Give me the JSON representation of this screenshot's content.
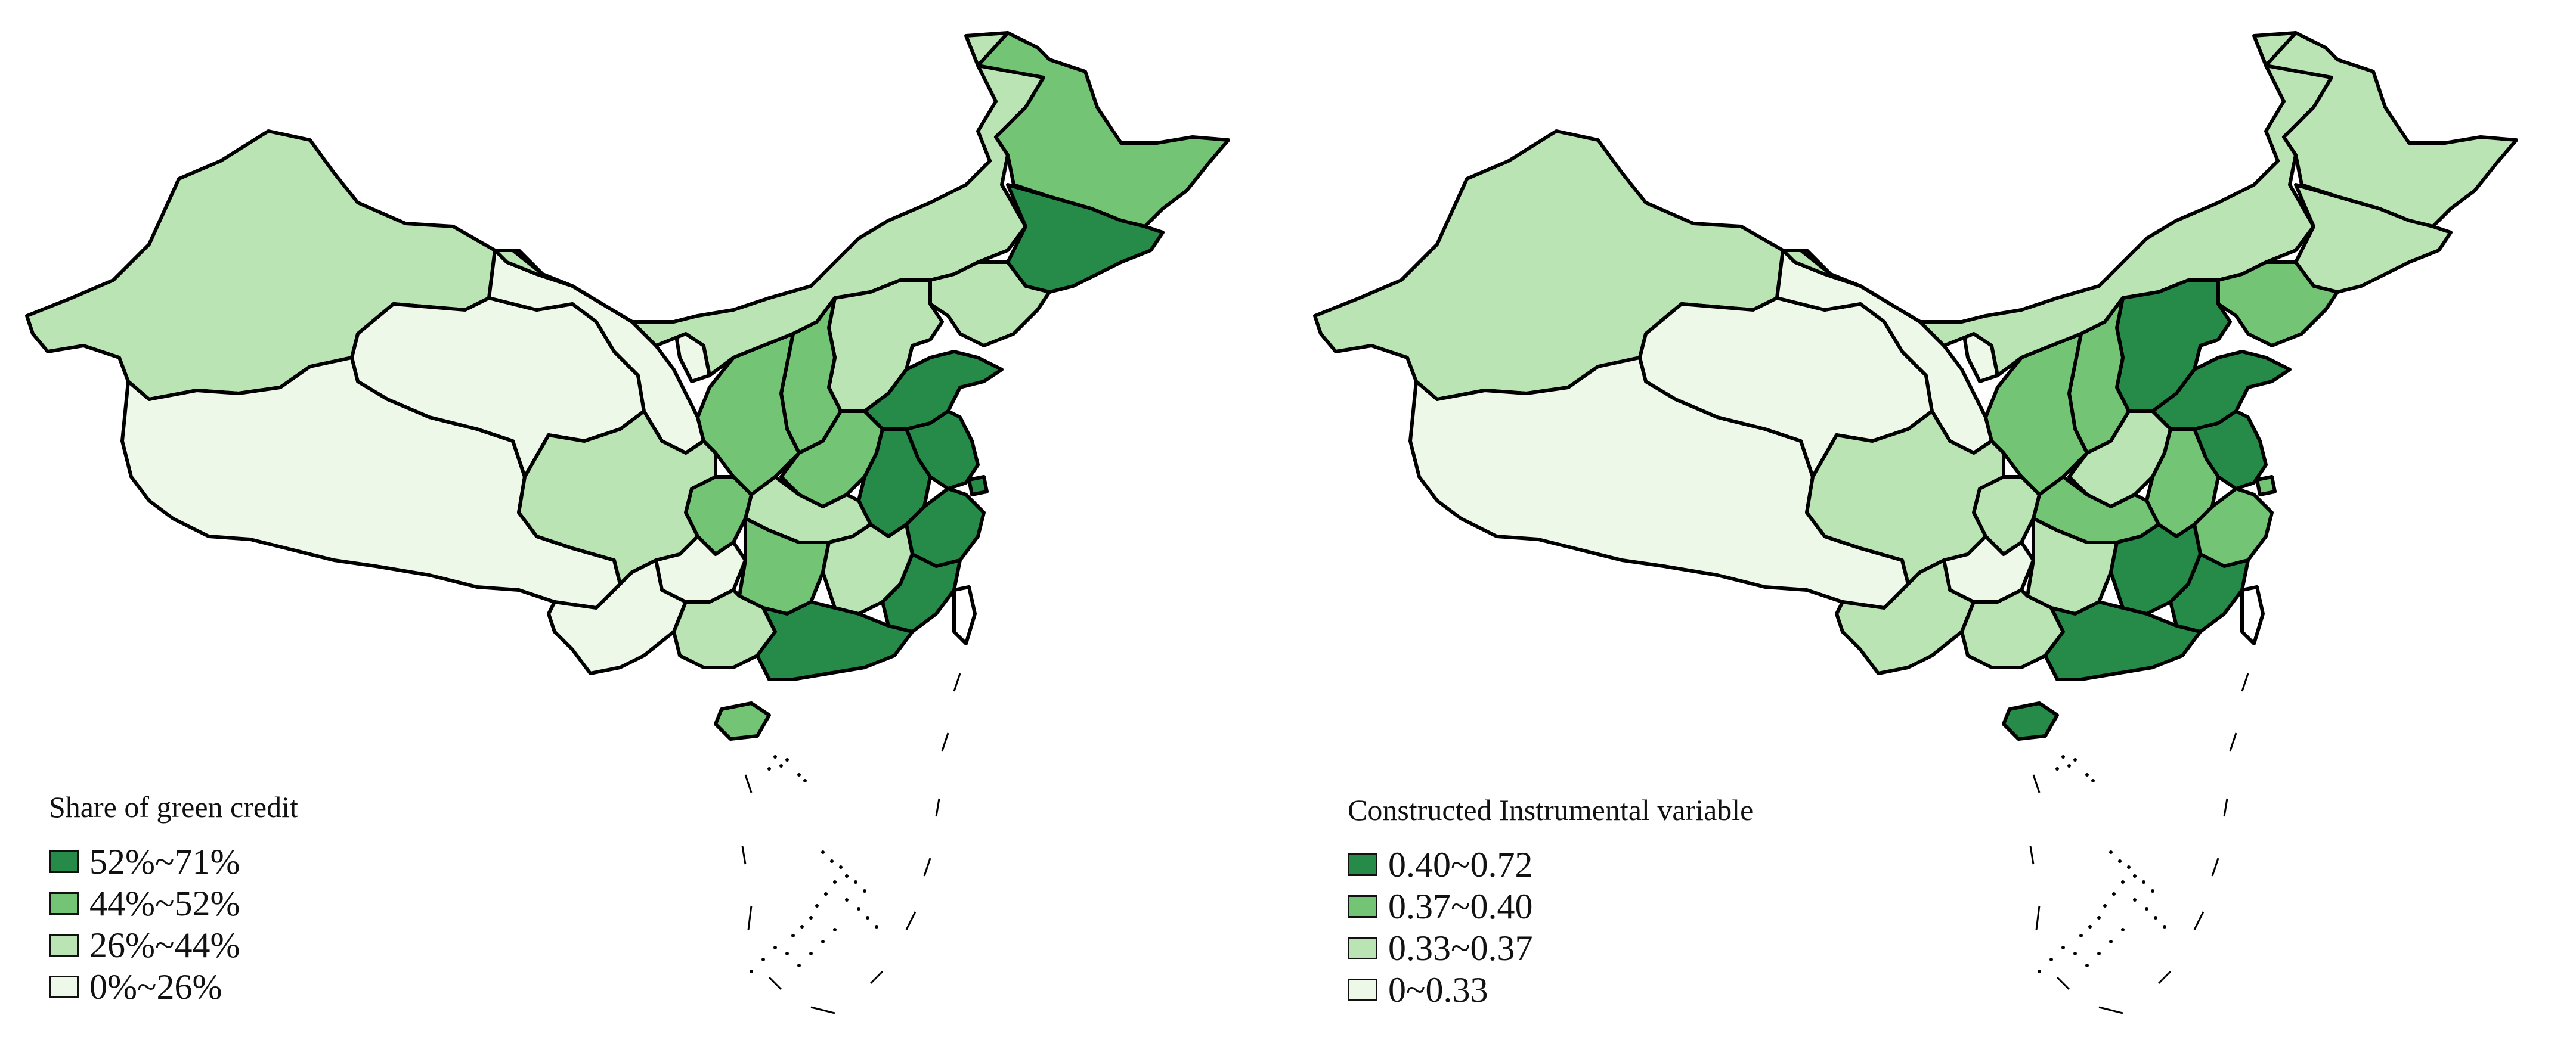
{
  "colors": {
    "c4": "#268a48",
    "c3": "#74c476",
    "c2": "#bae4b3",
    "c1": "#edf8e9",
    "border": "#000000"
  },
  "maps": [
    {
      "legend": {
        "title": "Share of green credit",
        "items": [
          {
            "label": "52%~71%",
            "class": 4
          },
          {
            "label": "44%~52%",
            "class": 3
          },
          {
            "label": "26%~44%",
            "class": 2
          },
          {
            "label": "0%~26%",
            "class": 1
          }
        ]
      },
      "regions": {
        "xinjiang": 2,
        "tibet": 1,
        "qinghai": 1,
        "gansu": 1,
        "inner_mongolia": 2,
        "heilongjiang": 3,
        "jilin": 4,
        "liaoning": 2,
        "beijing": 2,
        "tianjin": 2,
        "hebei": 2,
        "shanxi": 3,
        "shaanxi": 3,
        "ningxia": 1,
        "henan": 3,
        "shandong": 4,
        "jiangsu": 4,
        "shanghai": 4,
        "anhui": 4,
        "zhejiang": 4,
        "hubei": 2,
        "sichuan": 2,
        "chongqing": 3,
        "yunnan": 1,
        "guizhou": 1,
        "hunan": 3,
        "jiangxi": 2,
        "fujian": 4,
        "guangxi": 2,
        "guangdong": 4,
        "hainan": 3,
        "taiwan": 0
      }
    },
    {
      "legend": {
        "title": "Constructed Instrumental variable",
        "items": [
          {
            "label": "0.40~0.72",
            "class": 4
          },
          {
            "label": "0.37~0.40",
            "class": 3
          },
          {
            "label": "0.33~0.37",
            "class": 2
          },
          {
            "label": "0~0.33",
            "class": 1
          }
        ]
      },
      "regions": {
        "xinjiang": 2,
        "tibet": 1,
        "qinghai": 1,
        "gansu": 1,
        "inner_mongolia": 2,
        "heilongjiang": 2,
        "jilin": 2,
        "liaoning": 3,
        "beijing": 4,
        "tianjin": 4,
        "hebei": 4,
        "shanxi": 3,
        "shaanxi": 3,
        "ningxia": 1,
        "henan": 2,
        "shandong": 4,
        "jiangsu": 4,
        "shanghai": 3,
        "anhui": 3,
        "zhejiang": 3,
        "hubei": 3,
        "sichuan": 2,
        "chongqing": 2,
        "yunnan": 2,
        "guizhou": 1,
        "hunan": 2,
        "jiangxi": 4,
        "fujian": 4,
        "guangxi": 2,
        "guangdong": 4,
        "hainan": 4,
        "taiwan": 0
      }
    }
  ]
}
